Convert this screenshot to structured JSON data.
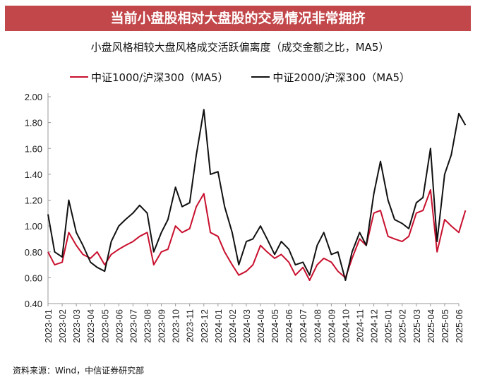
{
  "header": {
    "title": "当前小盘股相对大盘股的交易情况非常拥挤"
  },
  "chart_data": {
    "type": "line",
    "title": "小盘风格相较大盘风格成交活跃偏离度（成交金额之比，MA5）",
    "xlabel": "",
    "ylabel": "",
    "ylim": [
      0.4,
      2.0
    ],
    "yticks": [
      "0.40",
      "0.60",
      "0.80",
      "1.00",
      "1.20",
      "1.40",
      "1.60",
      "1.80",
      "2.00"
    ],
    "xticks": [
      "2023-01",
      "2023-02",
      "2023-03",
      "2023-04",
      "2023-05",
      "2023-06",
      "2023-07",
      "2023-08",
      "2023-09",
      "2023-10",
      "2023-11",
      "2023-12",
      "2024-01",
      "2024-02",
      "2024-03",
      "2024-04",
      "2024-05",
      "2024-06",
      "2024-07",
      "2024-08",
      "2024-09",
      "2024-10",
      "2024-11",
      "2024-12",
      "2025-01",
      "2025-02",
      "2025-03",
      "2025-04",
      "2025-05",
      "2025-06"
    ],
    "x": [
      "2023-01-01",
      "2023-01-15",
      "2023-02-01",
      "2023-02-15",
      "2023-03-01",
      "2023-03-15",
      "2023-04-01",
      "2023-04-15",
      "2023-05-01",
      "2023-05-15",
      "2023-06-01",
      "2023-06-15",
      "2023-07-01",
      "2023-07-15",
      "2023-08-01",
      "2023-08-15",
      "2023-09-01",
      "2023-09-15",
      "2023-10-01",
      "2023-10-15",
      "2023-11-01",
      "2023-11-15",
      "2023-12-01",
      "2023-12-15",
      "2024-01-01",
      "2024-01-15",
      "2024-02-01",
      "2024-02-15",
      "2024-03-01",
      "2024-03-15",
      "2024-04-01",
      "2024-04-15",
      "2024-05-01",
      "2024-05-15",
      "2024-06-01",
      "2024-06-15",
      "2024-07-01",
      "2024-07-15",
      "2024-08-01",
      "2024-08-15",
      "2024-09-01",
      "2024-09-15",
      "2024-10-01",
      "2024-10-15",
      "2024-11-01",
      "2024-11-15",
      "2024-12-01",
      "2024-12-15",
      "2025-01-01",
      "2025-01-15",
      "2025-02-01",
      "2025-02-15",
      "2025-03-01",
      "2025-03-15",
      "2025-04-01",
      "2025-04-15",
      "2025-05-01",
      "2025-05-15",
      "2025-06-01",
      "2025-06-15"
    ],
    "series": [
      {
        "name": "中证1000/沪深300（MA5）",
        "color": "#c8102e",
        "values": [
          0.8,
          0.7,
          0.72,
          0.95,
          0.85,
          0.78,
          0.75,
          0.8,
          0.7,
          0.78,
          0.82,
          0.85,
          0.88,
          0.92,
          0.95,
          0.7,
          0.8,
          0.82,
          1.0,
          0.95,
          0.98,
          1.15,
          1.25,
          0.95,
          0.92,
          0.8,
          0.7,
          0.62,
          0.65,
          0.7,
          0.85,
          0.8,
          0.75,
          0.78,
          0.72,
          0.62,
          0.68,
          0.58,
          0.7,
          0.75,
          0.72,
          0.65,
          0.6,
          0.75,
          0.9,
          0.85,
          1.1,
          1.12,
          0.92,
          0.9,
          0.88,
          0.92,
          1.1,
          1.12,
          1.28,
          0.8,
          1.05,
          1.0,
          0.95,
          1.12
        ]
      },
      {
        "name": "中证2000/沪深300（MA5）",
        "color": "#111111",
        "values": [
          1.09,
          0.8,
          0.76,
          1.2,
          0.95,
          0.85,
          0.72,
          0.68,
          0.65,
          0.88,
          1.0,
          1.05,
          1.1,
          1.16,
          1.1,
          0.8,
          0.95,
          1.05,
          1.3,
          1.15,
          1.18,
          1.55,
          1.9,
          1.4,
          1.42,
          1.15,
          0.95,
          0.7,
          0.88,
          0.9,
          1.0,
          0.9,
          0.78,
          0.88,
          0.82,
          0.7,
          0.72,
          0.62,
          0.85,
          0.95,
          0.78,
          0.8,
          0.58,
          0.8,
          0.95,
          0.85,
          1.25,
          1.5,
          1.2,
          1.05,
          1.02,
          0.98,
          1.18,
          1.22,
          1.6,
          0.88,
          1.4,
          1.55,
          1.87,
          1.78
        ]
      }
    ],
    "legend_position": "top-center",
    "grid": false
  },
  "legend": {
    "items": [
      "中证1000/沪深300（MA5）",
      "中证2000/沪深300（MA5）"
    ]
  },
  "footer": {
    "source": "资料来源：Wind，中信证券研究部"
  }
}
